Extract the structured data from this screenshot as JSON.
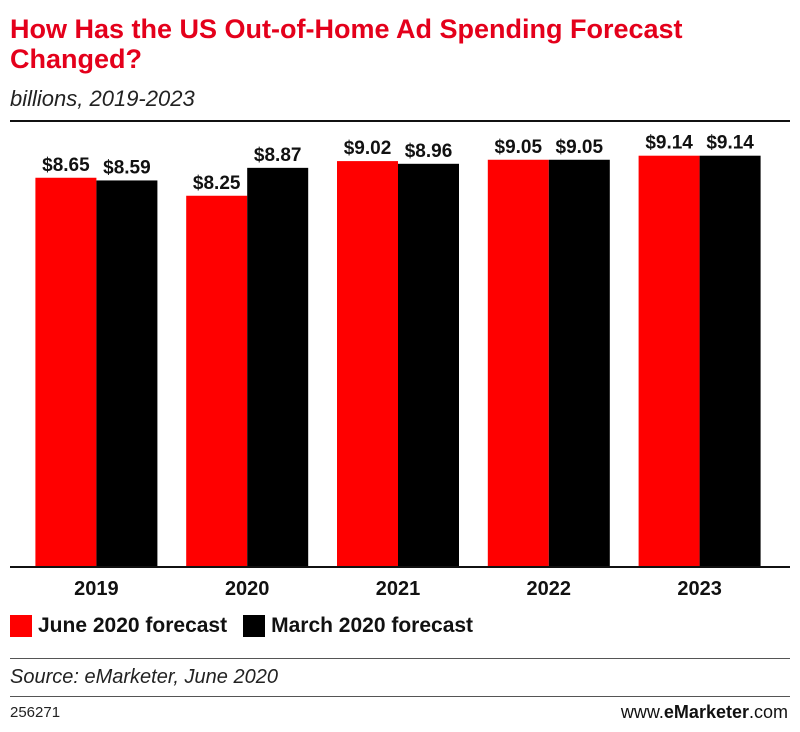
{
  "chart_data": {
    "type": "bar",
    "title": "How Has the US Out-of-Home Ad Spending Forecast Changed?",
    "subtitle": "billions, 2019-2023",
    "categories": [
      "2019",
      "2020",
      "2021",
      "2022",
      "2023"
    ],
    "series": [
      {
        "name": "June 2020 forecast",
        "color": "#ff0000",
        "values": [
          8.65,
          8.25,
          9.02,
          9.05,
          9.14
        ],
        "labels": [
          "$8.65",
          "$8.25",
          "$9.02",
          "$9.05",
          "$9.14"
        ]
      },
      {
        "name": "March 2020 forecast",
        "color": "#000000",
        "values": [
          8.59,
          8.87,
          8.96,
          9.05,
          9.14
        ],
        "labels": [
          "$8.59",
          "$8.87",
          "$8.96",
          "$9.05",
          "$9.14"
        ]
      }
    ],
    "ylim": [
      0,
      9.4
    ],
    "xlabel": "",
    "ylabel": "",
    "grid": false,
    "legend": "bottom-left"
  },
  "footer": {
    "source": "Source: eMarketer, June 2020",
    "id": "256271",
    "brand_prefix": "www.",
    "brand_name": "eMarketer",
    "brand_suffix": ".com"
  }
}
